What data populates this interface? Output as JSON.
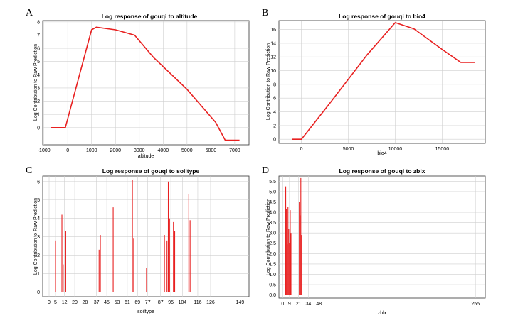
{
  "colors": {
    "line": "#e82020",
    "bar": "#e82020",
    "grid": "#cfcfcf",
    "frame": "#333333"
  },
  "chart_data": [
    {
      "panel": "A",
      "type": "line",
      "title": "Log response of gouqi to altitude",
      "xlabel": "altitude",
      "ylabel": "Log Contribution to Raw Prediction",
      "xlim": [
        -1050,
        7600
      ],
      "ylim": [
        -1.3,
        8.1
      ],
      "xticks": [
        -1000,
        0,
        1000,
        2000,
        3000,
        4000,
        5000,
        6000,
        7000
      ],
      "xticklabels": [
        "-1000",
        "0",
        "1000",
        "2000",
        "3000",
        "4000",
        "5000",
        "6000",
        "7000"
      ],
      "yticks": [
        0,
        1,
        2,
        3,
        4,
        5,
        6,
        7,
        8
      ],
      "yticklabels": [
        "0",
        "1",
        "2",
        "3",
        "4",
        "5",
        "6",
        "7",
        "8"
      ],
      "x": [
        -700,
        -100,
        1000,
        1200,
        2000,
        2800,
        3600,
        5000,
        6200,
        6600,
        7200
      ],
      "y": [
        0,
        0,
        7.4,
        7.6,
        7.4,
        7.0,
        5.3,
        2.9,
        0.4,
        -0.95,
        -0.95
      ]
    },
    {
      "panel": "B",
      "type": "line",
      "title": "Log response of gouqi to bio4",
      "xlabel": "bio4",
      "ylabel": "Log Contribution to Raw Prediction",
      "xlim": [
        -2400,
        19600
      ],
      "ylim": [
        -0.6,
        17.3
      ],
      "xticks": [
        0,
        5000,
        10000,
        15000
      ],
      "xticklabels": [
        "0",
        "5000",
        "10000",
        "15000"
      ],
      "yticks": [
        0,
        2,
        4,
        6,
        8,
        10,
        12,
        14,
        16
      ],
      "yticklabels": [
        "0",
        "2",
        "4",
        "6",
        "8",
        "10",
        "12",
        "14",
        "16"
      ],
      "x": [
        -1000,
        0,
        3000,
        7000,
        10000,
        12000,
        15000,
        17000,
        18500
      ],
      "y": [
        0,
        0,
        5.2,
        12.3,
        17.0,
        16.1,
        13.1,
        11.2,
        11.2
      ]
    },
    {
      "panel": "C",
      "type": "bar",
      "title": "Log response of gouqi to soiltype",
      "xlabel": "soiltype",
      "ylabel": "Log Contribution to Raw Prediction",
      "xlim": [
        -5,
        156
      ],
      "ylim": [
        -0.25,
        6.3
      ],
      "xticks": [
        0,
        5,
        12,
        20,
        28,
        37,
        45,
        53,
        61,
        69,
        77,
        87,
        95,
        104,
        116,
        126,
        149
      ],
      "xticklabels": [
        "0",
        "5",
        "12",
        "20",
        "28",
        "37",
        "45",
        "53",
        "61",
        "69",
        "77",
        "87",
        "95",
        "104",
        "116",
        "126",
        "149"
      ],
      "yticks": [
        0,
        1,
        2,
        3,
        4,
        5,
        6
      ],
      "yticklabels": [
        "0",
        "1",
        "2",
        "3",
        "4",
        "5",
        "6"
      ],
      "categories": [
        5,
        10,
        11,
        13,
        39,
        40,
        50,
        65,
        66,
        76,
        90,
        92,
        93,
        94,
        97,
        98,
        109,
        110
      ],
      "values": [
        2.8,
        4.2,
        1.5,
        3.3,
        2.3,
        3.1,
        4.6,
        6.1,
        2.9,
        1.3,
        3.1,
        2.8,
        6.0,
        4.0,
        3.8,
        3.3,
        5.3,
        3.9
      ]
    },
    {
      "panel": "D",
      "type": "bar",
      "title": "Log response of gouqi to zblx",
      "xlabel": "zblx",
      "ylabel": "Log Contribution to Raw Prediction",
      "xlim": [
        -5,
        268
      ],
      "ylim": [
        -0.15,
        5.75
      ],
      "xticks": [
        0,
        9,
        21,
        34,
        48,
        255
      ],
      "xticklabels": [
        "0",
        "9",
        "21",
        "34",
        "48",
        "255"
      ],
      "yticks": [
        0,
        0.5,
        1,
        1.5,
        2,
        2.5,
        3,
        3.5,
        4,
        4.5,
        5,
        5.5
      ],
      "yticklabels": [
        "0.0",
        "0.5",
        "1.0",
        "1.5",
        "2.0",
        "2.5",
        "3.0",
        "3.5",
        "4.0",
        "4.5",
        "5.0",
        "5.5"
      ],
      "categories": [
        4,
        5,
        6,
        7,
        8,
        9,
        10,
        11,
        22,
        23,
        24,
        25
      ],
      "values": [
        5.25,
        4.15,
        2.45,
        4.25,
        3.2,
        2.5,
        4.1,
        3.0,
        4.5,
        3.85,
        5.65,
        2.9
      ]
    }
  ]
}
